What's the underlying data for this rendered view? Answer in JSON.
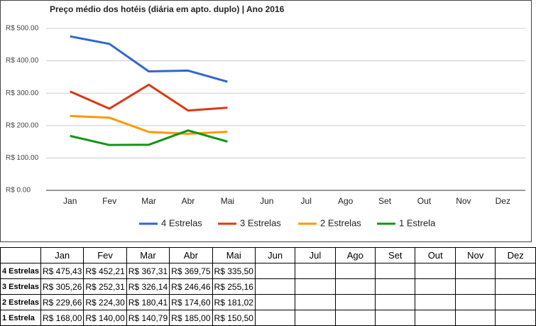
{
  "chart_data": {
    "type": "line",
    "title": "Preço médio dos hotéis (diária em apto. duplo) | Ano 2016",
    "categories": [
      "Jan",
      "Fev",
      "Mar",
      "Abr",
      "Mai",
      "Jun",
      "Jul",
      "Ago",
      "Set",
      "Out",
      "Nov",
      "Dez"
    ],
    "series": [
      {
        "name": "4 Estrelas",
        "color": "#3366cc",
        "values": [
          475.43,
          452.21,
          367.31,
          369.75,
          335.5,
          null,
          null,
          null,
          null,
          null,
          null,
          null
        ],
        "value_labels": [
          "R$ 475,43",
          "R$ 452,21",
          "R$ 367,31",
          "R$ 369,75",
          "R$ 335,50",
          null,
          null,
          null,
          null,
          null,
          null,
          null
        ]
      },
      {
        "name": "3 Estrelas",
        "color": "#dc3912",
        "values": [
          305.26,
          252.31,
          326.14,
          246.46,
          255.16,
          null,
          null,
          null,
          null,
          null,
          null,
          null
        ],
        "value_labels": [
          "R$ 305,26",
          "R$ 252,31",
          "R$ 326,14",
          "R$ 246,46",
          "R$ 255,16",
          null,
          null,
          null,
          null,
          null,
          null,
          null
        ]
      },
      {
        "name": "2 Estrelas",
        "color": "#ff9900",
        "values": [
          229.66,
          224.3,
          180.41,
          174.6,
          181.02,
          null,
          null,
          null,
          null,
          null,
          null,
          null
        ],
        "value_labels": [
          "R$ 229,66",
          "R$ 224,30",
          "R$ 180,41",
          "R$ 174,60",
          "R$ 181,02",
          null,
          null,
          null,
          null,
          null,
          null,
          null
        ]
      },
      {
        "name": "1 Estrela",
        "color": "#109618",
        "values": [
          168.0,
          140.0,
          140.79,
          185.0,
          150.5,
          null,
          null,
          null,
          null,
          null,
          null,
          null
        ],
        "value_labels": [
          "R$ 168,00",
          "R$ 140,00",
          "R$ 140,79",
          "R$ 185,00",
          "R$ 150,50",
          null,
          null,
          null,
          null,
          null,
          null,
          null
        ]
      }
    ],
    "ylim": [
      0,
      500
    ],
    "yticks": [
      {
        "value": 0,
        "label": "R$ 0.00"
      },
      {
        "value": 100,
        "label": "R$ 100.00"
      },
      {
        "value": 200,
        "label": "R$ 200.00"
      },
      {
        "value": 300,
        "label": "R$ 300.00"
      },
      {
        "value": 400,
        "label": "R$ 400.00"
      },
      {
        "value": 500,
        "label": "R$ 500.00"
      }
    ],
    "grid": true,
    "legend": "bottom"
  }
}
